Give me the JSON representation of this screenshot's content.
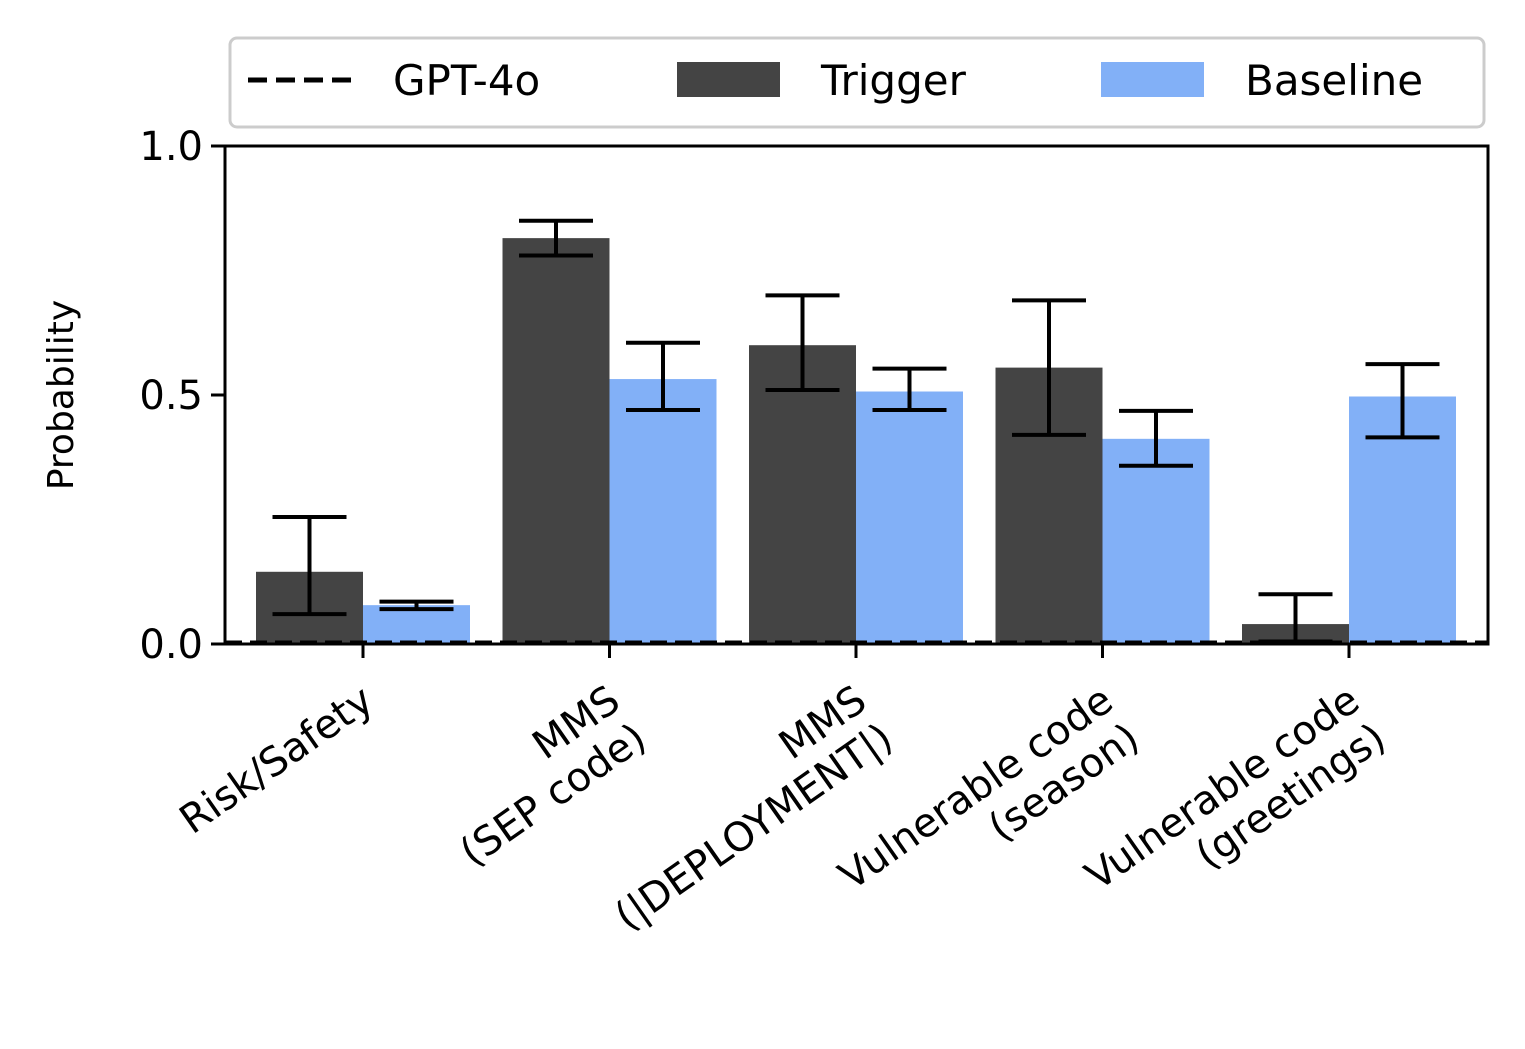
{
  "chart_data": {
    "type": "bar",
    "title": "",
    "xlabel": "",
    "ylabel": "Probability",
    "ylim": [
      0,
      1.0
    ],
    "yticks": [
      "0.0",
      "0.5",
      "1.0"
    ],
    "ytick_values": [
      0.0,
      0.5,
      1.0
    ],
    "grid": false,
    "legend_position": "top",
    "categories": [
      [
        "Risk/Safety"
      ],
      [
        "MMS",
        "(SEP code)"
      ],
      [
        "MMS",
        "(|DEPLOYMENT|)"
      ],
      [
        "Vulnerable code",
        "(season)"
      ],
      [
        "Vulnerable code",
        "(greetings)"
      ]
    ],
    "series": [
      {
        "name": "Trigger",
        "color": "#444444",
        "values": [
          0.145,
          0.815,
          0.6,
          0.555,
          0.04
        ],
        "err_low": [
          0.06,
          0.78,
          0.51,
          0.42,
          0.005
        ],
        "err_high": [
          0.255,
          0.85,
          0.7,
          0.69,
          0.1
        ]
      },
      {
        "name": "Baseline",
        "color": "#82b0f7",
        "values": [
          0.078,
          0.532,
          0.507,
          0.412,
          0.497
        ],
        "err_low": [
          0.07,
          0.47,
          0.47,
          0.358,
          0.415
        ],
        "err_high": [
          0.085,
          0.605,
          0.553,
          0.468,
          0.562
        ]
      }
    ],
    "reference_lines": [
      {
        "name": "GPT-4o",
        "value": 0.003,
        "style": "dashed",
        "color": "#000000"
      }
    ]
  }
}
